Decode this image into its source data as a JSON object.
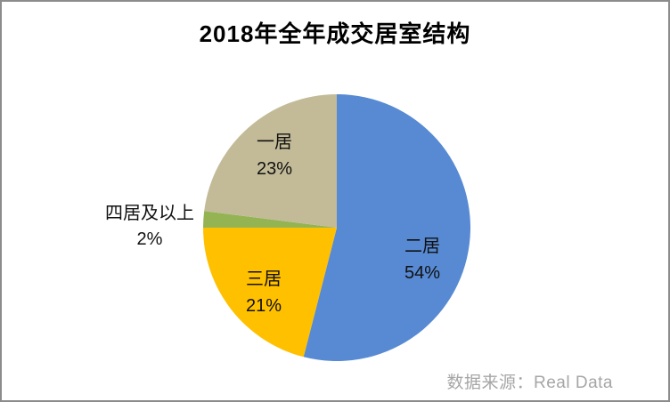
{
  "chart_data": {
    "type": "pie",
    "title": "2018年全年成交居室结构",
    "start_angle_deg": -90,
    "direction": "clockwise",
    "legend_position": "none",
    "slices": [
      {
        "label": "二居",
        "value": 54,
        "value_label": "54%",
        "color": "#578AD3"
      },
      {
        "label": "三居",
        "value": 21,
        "value_label": "21%",
        "color": "#FFC000"
      },
      {
        "label": "四居及以上",
        "value": 2,
        "value_label": "2%",
        "color": "#94B454"
      },
      {
        "label": "一居",
        "value": 23,
        "value_label": "23%",
        "color": "#C3BB98"
      }
    ]
  },
  "footer": {
    "source": "数据来源：Real Data"
  },
  "frame": {
    "border_color": "#8c8c8c",
    "background_color": "#ffffff",
    "label_color": "#111111",
    "source_color": "#a6a6a6"
  }
}
